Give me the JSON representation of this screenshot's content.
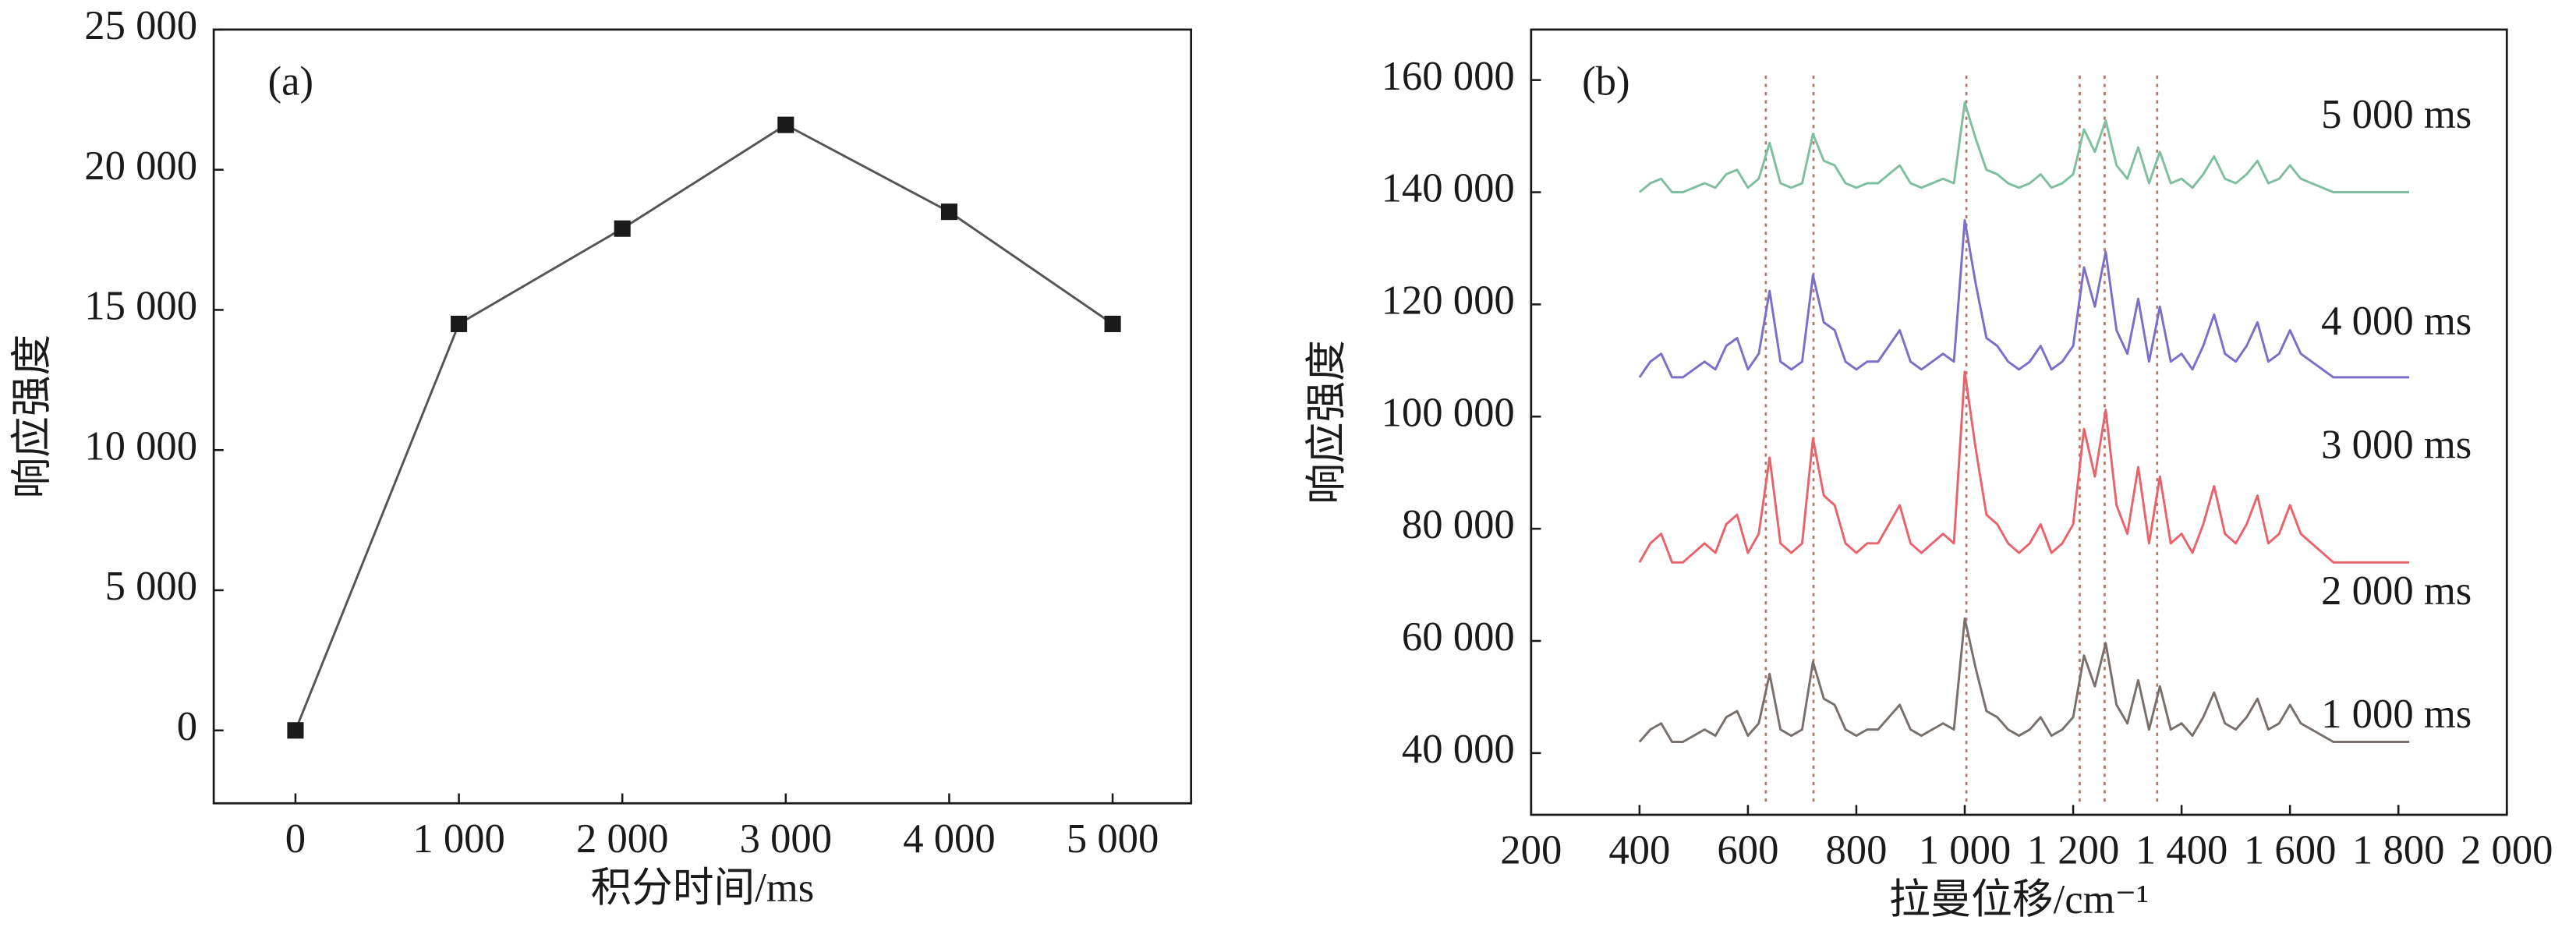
{
  "chart_data": [
    {
      "type": "line",
      "annotation": "(a)",
      "x_label": "积分时间/ms",
      "y_label": "响应强度",
      "x": [
        0,
        1000,
        2000,
        3000,
        4000,
        5000
      ],
      "values": [
        0,
        14500,
        17900,
        21600,
        18500,
        14500
      ],
      "color": "#555555",
      "marker_color": "#1a1a1a",
      "xlim": [
        -500,
        5480
      ],
      "ylim": [
        -2600,
        25000
      ],
      "xticks": [
        0,
        {
          "value": 1000,
          "label": "1 000"
        },
        {
          "value": 2000,
          "label": "2 000"
        },
        {
          "value": 3000,
          "label": "3 000"
        },
        {
          "value": 4000,
          "label": "4 000"
        },
        {
          "value": 5000,
          "label": "5 000"
        }
      ],
      "yticks": [
        0,
        {
          "value": 5000,
          "label": "5 000"
        },
        {
          "value": 10000,
          "label": "10 000"
        },
        {
          "value": 15000,
          "label": "15 000"
        },
        {
          "value": 20000,
          "label": "20 000"
        },
        {
          "value": 25000,
          "label": "25 000"
        }
      ]
    },
    {
      "type": "line",
      "annotation": "(b)",
      "x_label": "拉曼位移/cm⁻¹",
      "y_label": "响应强度",
      "x": [
        400,
        420,
        440,
        460,
        480,
        500,
        520,
        540,
        560,
        580,
        600,
        620,
        640,
        660,
        680,
        700,
        720,
        740,
        760,
        780,
        800,
        820,
        840,
        860,
        880,
        900,
        920,
        940,
        960,
        980,
        1000,
        1020,
        1040,
        1060,
        1080,
        1100,
        1120,
        1140,
        1160,
        1180,
        1200,
        1220,
        1240,
        1260,
        1280,
        1300,
        1320,
        1340,
        1360,
        1380,
        1400,
        1420,
        1440,
        1460,
        1480,
        1500,
        1520,
        1540,
        1560,
        1580,
        1600,
        1620,
        1640,
        1660,
        1680,
        1700,
        1720,
        1740,
        1760,
        1780,
        1800,
        1820
      ],
      "series": [
        {
          "name": "1 000 ms",
          "color": "#7a706b",
          "values": [
            42000,
            44200,
            45300,
            42000,
            42000,
            43100,
            44200,
            43100,
            46400,
            47500,
            43100,
            45300,
            54100,
            44200,
            43100,
            44200,
            56300,
            49700,
            48600,
            44200,
            43100,
            44200,
            44200,
            46400,
            48600,
            44200,
            43100,
            44200,
            45300,
            44200,
            64000,
            55200,
            47500,
            46400,
            44200,
            43100,
            44200,
            46400,
            43100,
            44200,
            46400,
            57400,
            51900,
            59600,
            48600,
            45300,
            53000,
            44200,
            51900,
            44200,
            45300,
            43100,
            46400,
            50800,
            45300,
            44200,
            46400,
            49700,
            44200,
            45300,
            48600,
            45300,
            44200,
            43100,
            42000,
            42000,
            42000,
            42000,
            42000,
            42000,
            42000,
            42000
          ]
        },
        {
          "name": "2 000 ms",
          "color": "#e8646a",
          "values": [
            74000,
            77400,
            79100,
            74000,
            74000,
            75700,
            77400,
            75700,
            80800,
            82500,
            75700,
            79100,
            92700,
            77400,
            75700,
            77400,
            96100,
            85900,
            84200,
            77400,
            75700,
            77400,
            77400,
            80800,
            84200,
            77400,
            75700,
            77400,
            79100,
            77400,
            108000,
            94400,
            82500,
            80800,
            77400,
            75700,
            77400,
            80800,
            75700,
            77400,
            80800,
            97800,
            89300,
            101200,
            84200,
            79100,
            91000,
            77400,
            89300,
            77400,
            79100,
            75700,
            80800,
            87600,
            79100,
            77400,
            80800,
            85900,
            77400,
            79100,
            84200,
            79100,
            77400,
            75700,
            74000,
            74000,
            74000,
            74000,
            74000,
            74000,
            74000,
            74000
          ]
        },
        {
          "name": "3 000 ms",
          "color": "#7b6fc8",
          "values": [
            107000,
            109800,
            111200,
            107000,
            107000,
            108400,
            109800,
            108400,
            112600,
            114000,
            108400,
            111200,
            122400,
            109800,
            108400,
            109800,
            125200,
            116800,
            115400,
            109800,
            108400,
            109800,
            109800,
            112600,
            115400,
            109800,
            108400,
            109800,
            111200,
            109800,
            135000,
            123800,
            114000,
            112600,
            109800,
            108400,
            109800,
            112600,
            108400,
            109800,
            112600,
            126600,
            119600,
            129400,
            115400,
            111200,
            121000,
            109800,
            119600,
            109800,
            111200,
            108400,
            112600,
            118200,
            111200,
            109800,
            112600,
            116800,
            109800,
            111200,
            115400,
            111200,
            109800,
            108400,
            107000,
            107000,
            107000,
            107000,
            107000,
            107000,
            107000,
            107000
          ]
        },
        {
          "name": "4 000 ms",
          "color": "#7fbf9f",
          "values": [
            140000,
            141600,
            142400,
            140000,
            140000,
            140800,
            141600,
            140800,
            143200,
            144000,
            140800,
            142400,
            148800,
            141600,
            140800,
            141600,
            150400,
            145600,
            144800,
            141600,
            140800,
            141600,
            141600,
            143200,
            144800,
            141600,
            140800,
            141600,
            142400,
            141600,
            156000,
            149600,
            144000,
            143200,
            141600,
            140800,
            141600,
            143200,
            140800,
            141600,
            143200,
            151200,
            147200,
            152800,
            144800,
            142400,
            148000,
            141600,
            147200,
            141600,
            142400,
            140800,
            143200,
            146400,
            142400,
            141600,
            143200,
            145600,
            141600,
            142400,
            144800,
            142400,
            141600,
            140800,
            140000,
            140000,
            140000,
            140000,
            140000,
            140000,
            140000,
            140000
          ]
        }
      ],
      "extra_labels": [
        "5 000 ms"
      ],
      "reference_lines": [
        633,
        721,
        1003,
        1212,
        1258,
        1355
      ],
      "reference_color": "#b07a6a",
      "xlim": [
        200,
        2000
      ],
      "ylim": [
        29000,
        169000
      ],
      "xticks": [
        200,
        400,
        600,
        800,
        {
          "value": 1000,
          "label": "1 000"
        },
        {
          "value": 1200,
          "label": "1 200"
        },
        {
          "value": 1400,
          "label": "1 400"
        },
        {
          "value": 1600,
          "label": "1 600"
        },
        {
          "value": 1800,
          "label": "1 800"
        },
        {
          "value": 2000,
          "label": "2 000"
        }
      ],
      "yticks": [
        {
          "value": 40000,
          "label": "40 000"
        },
        {
          "value": 60000,
          "label": "60 000"
        },
        {
          "value": 80000,
          "label": "80 000"
        },
        {
          "value": 100000,
          "label": "100 000"
        },
        {
          "value": 120000,
          "label": "120 000"
        },
        {
          "value": 140000,
          "label": "140 000"
        },
        {
          "value": 160000,
          "label": "160 000"
        }
      ]
    }
  ]
}
